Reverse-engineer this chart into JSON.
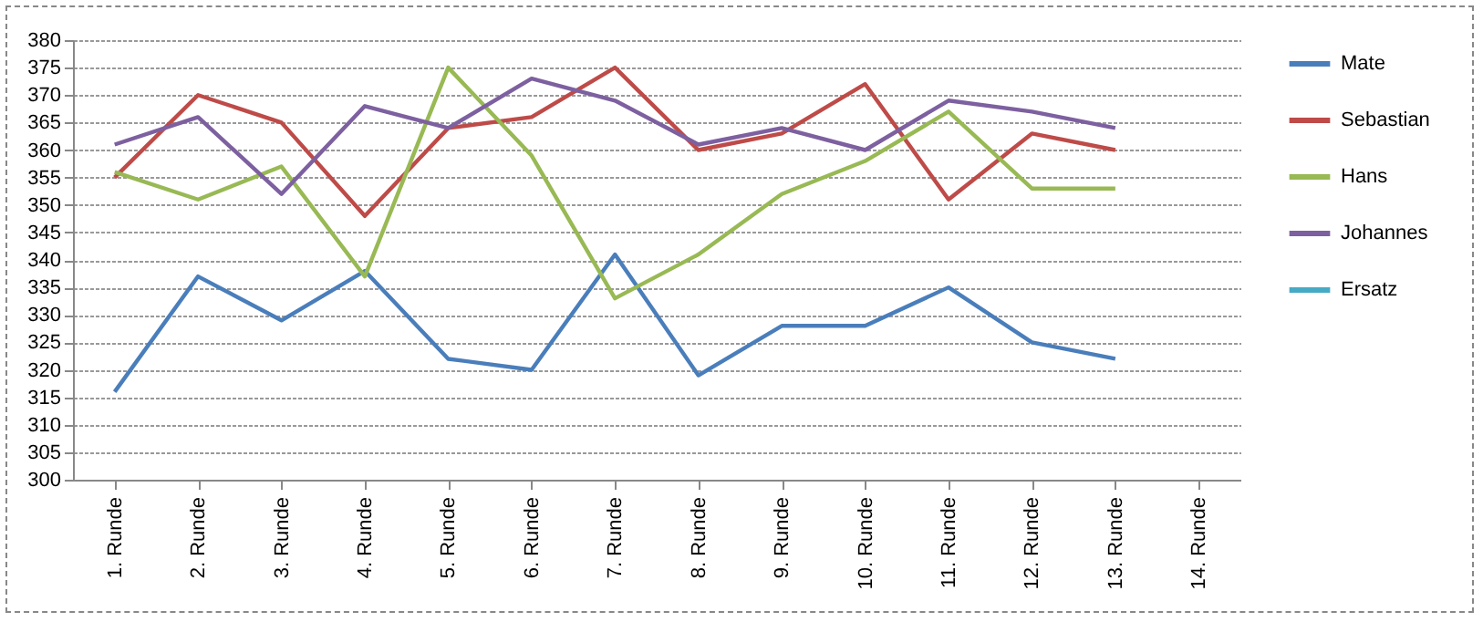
{
  "chart_data": {
    "type": "line",
    "categories": [
      "1. Runde",
      "2. Runde",
      "3. Runde",
      "4. Runde",
      "5. Runde",
      "6. Runde",
      "7. Runde",
      "8. Runde",
      "9. Runde",
      "10. Runde",
      "11. Runde",
      "12. Runde",
      "13. Runde",
      "14. Runde"
    ],
    "series": [
      {
        "name": "Mate",
        "color": "#4a7ebb",
        "values": [
          316,
          337,
          329,
          338,
          322,
          320,
          341,
          319,
          328,
          328,
          335,
          325,
          322,
          null
        ]
      },
      {
        "name": "Sebastian",
        "color": "#be4b48",
        "values": [
          355,
          370,
          365,
          348,
          364,
          366,
          375,
          360,
          363,
          372,
          351,
          363,
          360,
          null
        ]
      },
      {
        "name": "Hans",
        "color": "#98b954",
        "values": [
          356,
          351,
          357,
          337,
          375,
          359,
          333,
          341,
          352,
          358,
          367,
          353,
          353,
          null
        ]
      },
      {
        "name": "Johannes",
        "color": "#7d60a0",
        "values": [
          361,
          366,
          352,
          368,
          364,
          373,
          369,
          361,
          364,
          360,
          369,
          367,
          364,
          null
        ]
      },
      {
        "name": "Ersatz",
        "color": "#46aac5",
        "values": [
          null,
          null,
          null,
          null,
          null,
          null,
          null,
          null,
          null,
          null,
          null,
          null,
          null,
          null
        ]
      }
    ],
    "ylim": [
      300,
      380
    ],
    "yticks": [
      300,
      305,
      310,
      315,
      320,
      325,
      330,
      335,
      340,
      345,
      350,
      355,
      360,
      365,
      370,
      375,
      380
    ],
    "grid": "y",
    "legend": "right",
    "marker": "none",
    "line_style": "solid"
  }
}
